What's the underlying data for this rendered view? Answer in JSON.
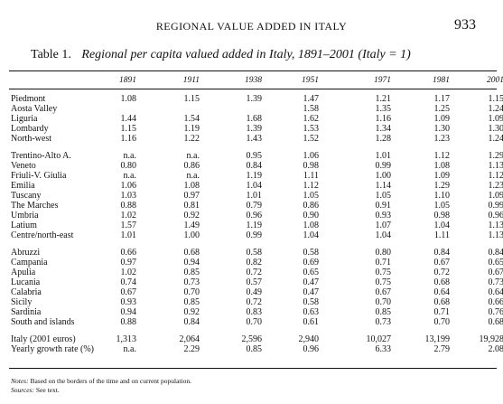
{
  "header": {
    "running_title": "REGIONAL VALUE ADDED IN ITALY",
    "page_number": "933"
  },
  "caption": {
    "label": "Table 1.",
    "title": "Regional per capita valued added in Italy, 1891–2001 (Italy = 1)"
  },
  "columns": [
    "1891",
    "1911",
    "1938",
    "1951",
    "1971",
    "1981",
    "2001"
  ],
  "groups": [
    {
      "rows": [
        {
          "region": "Piedmont",
          "values": [
            "1.08",
            "1.15",
            "1.39",
            "1.47",
            "1.21",
            "1.17",
            "1.15"
          ]
        },
        {
          "region": "Aosta Valley",
          "values": [
            "",
            "",
            "",
            "1.58",
            "1.35",
            "1.25",
            "1.24"
          ]
        },
        {
          "region": "Liguria",
          "values": [
            "1.44",
            "1.54",
            "1.68",
            "1.62",
            "1.16",
            "1.09",
            "1.09"
          ]
        },
        {
          "region": "Lombardy",
          "values": [
            "1.15",
            "1.19",
            "1.39",
            "1.53",
            "1.34",
            "1.30",
            "1.30"
          ]
        },
        {
          "region": "North-west",
          "values": [
            "1.16",
            "1.22",
            "1.43",
            "1.52",
            "1.28",
            "1.23",
            "1.24"
          ]
        }
      ]
    },
    {
      "rows": [
        {
          "region": "Trentino-Alto A.",
          "values": [
            "n.a.",
            "n.a.",
            "0.95",
            "1.06",
            "1.01",
            "1.12",
            "1.29"
          ]
        },
        {
          "region": "Veneto",
          "values": [
            "0.80",
            "0.86",
            "0.84",
            "0.98",
            "0.99",
            "1.08",
            "1.13"
          ]
        },
        {
          "region": "Friuli-V. Giulia",
          "values": [
            "n.a.",
            "n.a.",
            "1.19",
            "1.11",
            "1.00",
            "1.09",
            "1.12"
          ]
        },
        {
          "region": "Emilia",
          "values": [
            "1.06",
            "1.08",
            "1.04",
            "1.12",
            "1.14",
            "1.29",
            "1.23"
          ]
        },
        {
          "region": "Tuscany",
          "values": [
            "1.03",
            "0.97",
            "1.01",
            "1.05",
            "1.05",
            "1.10",
            "1.09"
          ]
        },
        {
          "region": "The Marches",
          "values": [
            "0.88",
            "0.81",
            "0.79",
            "0.86",
            "0.91",
            "1.05",
            "0.99"
          ]
        },
        {
          "region": "Umbria",
          "values": [
            "1.02",
            "0.92",
            "0.96",
            "0.90",
            "0.93",
            "0.98",
            "0.96"
          ]
        },
        {
          "region": "Latium",
          "values": [
            "1.57",
            "1.49",
            "1.19",
            "1.08",
            "1.07",
            "1.04",
            "1.13"
          ]
        },
        {
          "region": "Centre/north-east",
          "values": [
            "1.01",
            "1.00",
            "0.99",
            "1.04",
            "1.04",
            "1.11",
            "1.13"
          ]
        }
      ]
    },
    {
      "rows": [
        {
          "region": "Abruzzi",
          "values": [
            "0.66",
            "0.68",
            "0.58",
            "0.58",
            "0.80",
            "0.84",
            "0.84"
          ]
        },
        {
          "region": "Campania",
          "values": [
            "0.97",
            "0.94",
            "0.82",
            "0.69",
            "0.71",
            "0.67",
            "0.65"
          ]
        },
        {
          "region": "Apulia",
          "values": [
            "1.02",
            "0.85",
            "0.72",
            "0.65",
            "0.75",
            "0.72",
            "0.67"
          ]
        },
        {
          "region": "Lucania",
          "values": [
            "0.74",
            "0.73",
            "0.57",
            "0.47",
            "0.75",
            "0.68",
            "0.73"
          ]
        },
        {
          "region": "Calabria",
          "values": [
            "0.67",
            "0.70",
            "0.49",
            "0.47",
            "0.67",
            "0.64",
            "0.64"
          ]
        },
        {
          "region": "Sicily",
          "values": [
            "0.93",
            "0.85",
            "0.72",
            "0.58",
            "0.70",
            "0.68",
            "0.66"
          ]
        },
        {
          "region": "Sardinia",
          "values": [
            "0.94",
            "0.92",
            "0.83",
            "0.63",
            "0.85",
            "0.71",
            "0.76"
          ]
        },
        {
          "region": "South and islands",
          "values": [
            "0.88",
            "0.84",
            "0.70",
            "0.61",
            "0.73",
            "0.70",
            "0.68"
          ]
        }
      ]
    },
    {
      "rows": [
        {
          "region": "Italy (2001 euros)",
          "values": [
            "1,313",
            "2,064",
            "2,596",
            "2,940",
            "10,027",
            "13,199",
            "19,928"
          ]
        },
        {
          "region": "Yearly growth rate (%)",
          "values": [
            "n.a.",
            "2.29",
            "0.85",
            "0.96",
            "6.33",
            "2.79",
            "2.08"
          ]
        }
      ]
    }
  ],
  "notes": {
    "notes_label": "Notes:",
    "notes_text": "Based on the borders of the time and on current population.",
    "sources_label": "Sources:",
    "sources_text": "See text."
  }
}
